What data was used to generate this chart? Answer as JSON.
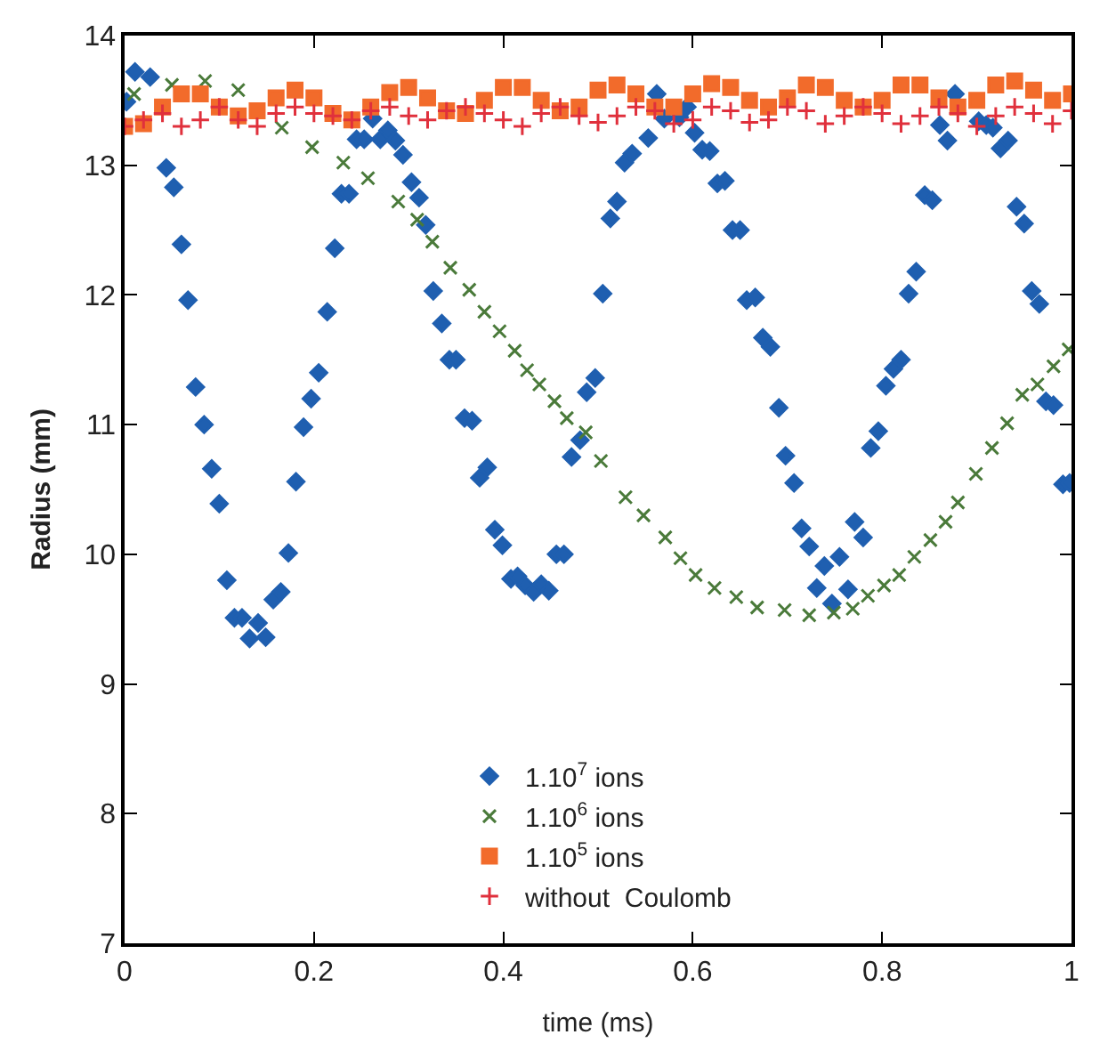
{
  "chart_data": {
    "type": "scatter",
    "xlabel": "time (ms)",
    "ylabel": "Radius (mm)",
    "xlim": [
      0,
      1
    ],
    "ylim": [
      7,
      14
    ],
    "xticks": [
      0,
      0.2,
      0.4,
      0.6,
      0.8,
      1
    ],
    "yticks": [
      7,
      8,
      9,
      10,
      11,
      12,
      13,
      14
    ],
    "legend": "bottom",
    "series": [
      {
        "name": "1.10$^{7}$ ions",
        "color": "#1f5fb0",
        "marker": "diamond",
        "x": [
          0.002,
          0.011,
          0.027,
          0.044,
          0.052,
          0.06,
          0.067,
          0.075,
          0.084,
          0.092,
          0.1,
          0.108,
          0.116,
          0.124,
          0.132,
          0.141,
          0.149,
          0.157,
          0.165,
          0.173,
          0.181,
          0.189,
          0.197,
          0.205,
          0.214,
          0.222,
          0.229,
          0.237,
          0.245,
          0.253,
          0.262,
          0.27,
          0.278,
          0.286,
          0.294,
          0.303,
          0.311,
          0.318,
          0.326,
          0.335,
          0.343,
          0.35,
          0.359,
          0.367,
          0.375,
          0.383,
          0.391,
          0.399,
          0.408,
          0.415,
          0.423,
          0.432,
          0.44,
          0.448,
          0.456,
          0.464,
          0.472,
          0.481,
          0.488,
          0.497,
          0.505,
          0.513,
          0.52,
          0.528,
          0.536,
          0.553,
          0.562,
          0.57,
          0.586,
          0.594,
          0.602,
          0.61,
          0.618,
          0.626,
          0.634,
          0.642,
          0.65,
          0.657,
          0.666,
          0.674,
          0.682,
          0.691,
          0.698,
          0.707,
          0.715,
          0.723,
          0.731,
          0.739,
          0.747,
          0.755,
          0.764,
          0.771,
          0.78,
          0.788,
          0.796,
          0.804,
          0.812,
          0.82,
          0.828,
          0.836,
          0.845,
          0.853,
          0.861,
          0.869,
          0.877,
          0.902,
          0.91,
          0.917,
          0.925,
          0.933,
          0.942,
          0.95,
          0.958,
          0.966,
          0.973,
          0.981,
          0.991,
          0.998
        ],
        "values": [
          13.49,
          13.72,
          13.68,
          12.98,
          12.83,
          12.39,
          11.96,
          11.29,
          11.0,
          10.66,
          10.39,
          9.8,
          9.51,
          9.51,
          9.35,
          9.47,
          9.36,
          9.65,
          9.71,
          10.01,
          10.56,
          10.98,
          11.2,
          11.4,
          11.87,
          12.36,
          12.78,
          12.78,
          13.2,
          13.2,
          13.36,
          13.2,
          13.27,
          13.19,
          13.08,
          12.87,
          12.75,
          12.54,
          12.03,
          11.78,
          11.5,
          11.5,
          11.05,
          11.03,
          10.59,
          10.67,
          10.19,
          10.07,
          9.81,
          9.83,
          9.76,
          9.71,
          9.77,
          9.72,
          10.0,
          10.0,
          10.75,
          10.88,
          11.25,
          11.36,
          12.01,
          12.59,
          12.72,
          13.02,
          13.09,
          13.21,
          13.55,
          13.36,
          13.37,
          13.45,
          13.25,
          13.12,
          13.11,
          12.86,
          12.88,
          12.5,
          12.5,
          11.96,
          11.98,
          11.67,
          11.6,
          11.13,
          10.76,
          10.55,
          10.2,
          10.06,
          9.74,
          9.91,
          9.62,
          9.98,
          9.73,
          10.25,
          10.13,
          10.82,
          10.95,
          11.3,
          11.43,
          11.5,
          12.01,
          12.18,
          12.77,
          12.73,
          13.31,
          13.19,
          13.55,
          13.34,
          13.31,
          13.29,
          13.13,
          13.19,
          12.68,
          12.55,
          12.03,
          11.93,
          11.18,
          11.15,
          10.54,
          10.55
        ]
      },
      {
        "name": "1.10$^{6}$ ions",
        "color": "#4a7a3a",
        "marker": "cross",
        "x": [
          0.01,
          0.05,
          0.085,
          0.12,
          0.16,
          0.166,
          0.198,
          0.231,
          0.257,
          0.289,
          0.309,
          0.325,
          0.344,
          0.364,
          0.38,
          0.396,
          0.412,
          0.425,
          0.438,
          0.454,
          0.467,
          0.487,
          0.503,
          0.529,
          0.548,
          0.571,
          0.587,
          0.603,
          0.623,
          0.646,
          0.668,
          0.697,
          0.723,
          0.749,
          0.769,
          0.785,
          0.802,
          0.818,
          0.834,
          0.851,
          0.867,
          0.88,
          0.899,
          0.916,
          0.932,
          0.948,
          0.964,
          0.981,
          0.997
        ],
        "values": [
          13.55,
          13.62,
          13.65,
          13.58,
          null,
          13.29,
          13.14,
          13.02,
          12.9,
          12.72,
          12.58,
          12.41,
          12.21,
          12.04,
          11.87,
          11.72,
          11.57,
          11.42,
          11.31,
          11.18,
          11.05,
          10.94,
          10.72,
          10.44,
          10.3,
          10.13,
          9.97,
          9.84,
          9.74,
          9.67,
          9.59,
          9.57,
          9.53,
          9.55,
          9.58,
          9.68,
          9.76,
          9.84,
          9.98,
          10.11,
          10.25,
          10.4,
          10.62,
          10.82,
          11.01,
          11.23,
          11.31,
          11.45,
          11.58
        ]
      },
      {
        "name": "1.10$^{5}$ ions",
        "color": "#f26b2b",
        "marker": "square",
        "x": [
          0,
          0.02,
          0.04,
          0.06,
          0.08,
          0.1,
          0.12,
          0.14,
          0.16,
          0.18,
          0.2,
          0.22,
          0.24,
          0.26,
          0.28,
          0.3,
          0.32,
          0.34,
          0.36,
          0.38,
          0.4,
          0.42,
          0.44,
          0.46,
          0.48,
          0.5,
          0.52,
          0.54,
          0.56,
          0.58,
          0.6,
          0.62,
          0.64,
          0.66,
          0.68,
          0.7,
          0.72,
          0.74,
          0.76,
          0.78,
          0.8,
          0.82,
          0.84,
          0.86,
          0.88,
          0.9,
          0.92,
          0.94,
          0.96,
          0.98,
          1.0
        ],
        "values": [
          13.3,
          13.32,
          13.45,
          13.55,
          13.55,
          13.45,
          13.38,
          13.42,
          13.52,
          13.58,
          13.52,
          13.4,
          13.35,
          13.45,
          13.56,
          13.6,
          13.52,
          13.42,
          13.4,
          13.5,
          13.6,
          13.6,
          13.5,
          13.42,
          13.45,
          13.58,
          13.62,
          13.55,
          13.45,
          13.45,
          13.55,
          13.63,
          13.6,
          13.5,
          13.45,
          13.52,
          13.62,
          13.6,
          13.5,
          13.45,
          13.5,
          13.62,
          13.62,
          13.52,
          13.45,
          13.5,
          13.62,
          13.65,
          13.58,
          13.5,
          13.55
        ]
      },
      {
        "name": "without  Coulomb",
        "color": "#e0303c",
        "marker": "plus",
        "x": [
          0,
          0.02,
          0.04,
          0.06,
          0.08,
          0.1,
          0.12,
          0.14,
          0.16,
          0.18,
          0.2,
          0.22,
          0.24,
          0.26,
          0.28,
          0.3,
          0.32,
          0.34,
          0.36,
          0.38,
          0.4,
          0.42,
          0.44,
          0.46,
          0.48,
          0.5,
          0.52,
          0.54,
          0.56,
          0.58,
          0.6,
          0.62,
          0.64,
          0.66,
          0.68,
          0.7,
          0.72,
          0.74,
          0.76,
          0.78,
          0.8,
          0.82,
          0.84,
          0.86,
          0.88,
          0.9,
          0.92,
          0.94,
          0.96,
          0.98,
          1.0
        ],
        "values": [
          13.3,
          13.35,
          13.4,
          13.3,
          13.35,
          13.45,
          13.35,
          13.3,
          13.4,
          13.45,
          13.4,
          13.38,
          13.35,
          13.42,
          13.45,
          13.38,
          13.35,
          13.42,
          13.45,
          13.4,
          13.35,
          13.3,
          13.4,
          13.45,
          13.38,
          13.33,
          13.38,
          13.45,
          13.42,
          13.32,
          13.35,
          13.45,
          13.42,
          13.33,
          13.35,
          13.45,
          13.42,
          13.32,
          13.38,
          13.45,
          13.4,
          13.32,
          13.38,
          13.45,
          13.4,
          13.3,
          13.38,
          13.45,
          13.4,
          13.32,
          13.42
        ]
      }
    ]
  }
}
